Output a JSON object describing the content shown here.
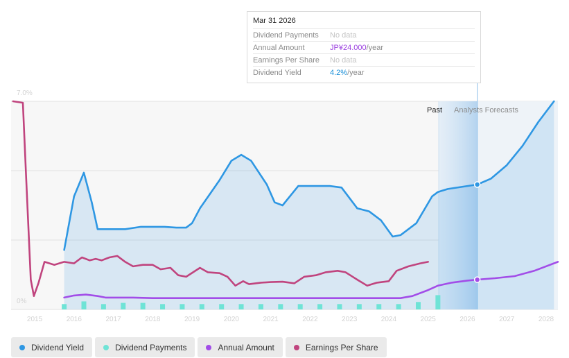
{
  "chart_data": {
    "type": "area",
    "title": "",
    "y_axis": {
      "min_label": "0%",
      "max_label": "7.0%",
      "min": 0,
      "max": 7.0
    },
    "x_range": [
      2014.4,
      2028.3
    ],
    "x_ticks": [
      "2015",
      "2016",
      "2017",
      "2018",
      "2019",
      "2020",
      "2021",
      "2022",
      "2023",
      "2024",
      "2025",
      "2026",
      "2027",
      "2028"
    ],
    "past_label": "Past",
    "forecast_label": "Analysts Forecasts",
    "forecast_start": 2025.27,
    "forecast_highlight_end": 2026.25,
    "tooltip": {
      "date": "Mar 31 2026",
      "rows": [
        {
          "label": "Dividend Payments",
          "value": "No data",
          "unit": "",
          "color": ""
        },
        {
          "label": "Annual Amount",
          "value": "JP¥24.000",
          "unit": "/year",
          "color": "#9b3fe0"
        },
        {
          "label": "Earnings Per Share",
          "value": "No data",
          "unit": "",
          "color": ""
        },
        {
          "label": "Dividend Yield",
          "value": "4.2%",
          "unit": "/year",
          "color": "#1a8fd8"
        }
      ]
    },
    "series": [
      {
        "name": "Dividend Yield",
        "color": "#2e97e3",
        "kind": "area",
        "points": [
          [
            2015.75,
            2.0
          ],
          [
            2016.0,
            3.8
          ],
          [
            2016.25,
            4.6
          ],
          [
            2016.45,
            3.6
          ],
          [
            2016.6,
            2.7
          ],
          [
            2017.0,
            2.7
          ],
          [
            2017.3,
            2.7
          ],
          [
            2017.7,
            2.78
          ],
          [
            2018.3,
            2.78
          ],
          [
            2018.6,
            2.75
          ],
          [
            2018.85,
            2.75
          ],
          [
            2019.0,
            2.9
          ],
          [
            2019.2,
            3.4
          ],
          [
            2019.7,
            4.35
          ],
          [
            2020.0,
            5.0
          ],
          [
            2020.25,
            5.2
          ],
          [
            2020.5,
            5.0
          ],
          [
            2020.9,
            4.2
          ],
          [
            2021.1,
            3.6
          ],
          [
            2021.3,
            3.5
          ],
          [
            2021.7,
            4.15
          ],
          [
            2022.0,
            4.15
          ],
          [
            2022.5,
            4.15
          ],
          [
            2022.8,
            4.1
          ],
          [
            2023.2,
            3.4
          ],
          [
            2023.5,
            3.3
          ],
          [
            2023.8,
            3.0
          ],
          [
            2024.1,
            2.45
          ],
          [
            2024.3,
            2.5
          ],
          [
            2024.7,
            2.9
          ],
          [
            2025.1,
            3.8
          ],
          [
            2025.25,
            3.95
          ],
          [
            2025.5,
            4.05
          ],
          [
            2026.0,
            4.15
          ],
          [
            2026.25,
            4.2
          ],
          [
            2026.6,
            4.4
          ],
          [
            2027.0,
            4.85
          ],
          [
            2027.4,
            5.5
          ],
          [
            2027.8,
            6.3
          ],
          [
            2028.2,
            7.0
          ]
        ]
      },
      {
        "name": "Annual Amount",
        "color": "#a24de8",
        "kind": "line",
        "points": [
          [
            2015.75,
            0.4
          ],
          [
            2016.0,
            0.47
          ],
          [
            2016.3,
            0.5
          ],
          [
            2016.6,
            0.45
          ],
          [
            2016.8,
            0.4
          ],
          [
            2017.5,
            0.4
          ],
          [
            2018.0,
            0.38
          ],
          [
            2024.3,
            0.38
          ],
          [
            2024.6,
            0.45
          ],
          [
            2025.0,
            0.65
          ],
          [
            2025.25,
            0.8
          ],
          [
            2025.6,
            0.9
          ],
          [
            2026.0,
            0.97
          ],
          [
            2026.25,
            1.0
          ],
          [
            2026.7,
            1.05
          ],
          [
            2027.2,
            1.12
          ],
          [
            2027.7,
            1.3
          ],
          [
            2028.3,
            1.6
          ]
        ]
      },
      {
        "name": "Earnings Per Share",
        "color": "#c0447e",
        "kind": "line",
        "points": [
          [
            2014.45,
            7.0
          ],
          [
            2014.7,
            6.95
          ],
          [
            2014.78,
            4.5
          ],
          [
            2014.9,
            1.0
          ],
          [
            2014.98,
            0.45
          ],
          [
            2015.1,
            0.9
          ],
          [
            2015.25,
            1.6
          ],
          [
            2015.5,
            1.5
          ],
          [
            2015.75,
            1.6
          ],
          [
            2016.0,
            1.55
          ],
          [
            2016.2,
            1.75
          ],
          [
            2016.4,
            1.65
          ],
          [
            2016.55,
            1.7
          ],
          [
            2016.7,
            1.65
          ],
          [
            2016.9,
            1.75
          ],
          [
            2017.1,
            1.8
          ],
          [
            2017.3,
            1.6
          ],
          [
            2017.5,
            1.45
          ],
          [
            2017.75,
            1.5
          ],
          [
            2018.0,
            1.5
          ],
          [
            2018.2,
            1.35
          ],
          [
            2018.45,
            1.4
          ],
          [
            2018.65,
            1.15
          ],
          [
            2018.85,
            1.1
          ],
          [
            2019.2,
            1.4
          ],
          [
            2019.4,
            1.25
          ],
          [
            2019.7,
            1.22
          ],
          [
            2019.9,
            1.1
          ],
          [
            2020.1,
            0.8
          ],
          [
            2020.3,
            0.95
          ],
          [
            2020.45,
            0.85
          ],
          [
            2020.75,
            0.9
          ],
          [
            2021.0,
            0.92
          ],
          [
            2021.3,
            0.93
          ],
          [
            2021.6,
            0.88
          ],
          [
            2021.85,
            1.1
          ],
          [
            2022.15,
            1.15
          ],
          [
            2022.4,
            1.25
          ],
          [
            2022.7,
            1.3
          ],
          [
            2022.9,
            1.25
          ],
          [
            2023.2,
            1.0
          ],
          [
            2023.45,
            0.8
          ],
          [
            2023.7,
            0.9
          ],
          [
            2024.0,
            0.95
          ],
          [
            2024.2,
            1.3
          ],
          [
            2024.5,
            1.45
          ],
          [
            2024.8,
            1.55
          ],
          [
            2025.0,
            1.6
          ]
        ]
      },
      {
        "name": "Dividend Payments",
        "color": "#6fe3d6",
        "kind": "bar",
        "points": [
          [
            2015.75,
            0.18
          ],
          [
            2016.25,
            0.27
          ],
          [
            2016.75,
            0.18
          ],
          [
            2017.25,
            0.22
          ],
          [
            2017.75,
            0.22
          ],
          [
            2018.25,
            0.18
          ],
          [
            2018.75,
            0.18
          ],
          [
            2019.25,
            0.18
          ],
          [
            2019.75,
            0.18
          ],
          [
            2020.25,
            0.18
          ],
          [
            2020.75,
            0.18
          ],
          [
            2021.25,
            0.18
          ],
          [
            2021.75,
            0.18
          ],
          [
            2022.25,
            0.18
          ],
          [
            2022.75,
            0.18
          ],
          [
            2023.25,
            0.18
          ],
          [
            2023.75,
            0.18
          ],
          [
            2024.25,
            0.18
          ],
          [
            2024.75,
            0.25
          ],
          [
            2025.25,
            0.48
          ]
        ]
      }
    ],
    "highlight_points": [
      {
        "series": "Dividend Yield",
        "x": 2026.25,
        "y": 4.2
      },
      {
        "series": "Annual Amount",
        "x": 2026.25,
        "y": 1.0
      }
    ]
  },
  "legend": [
    {
      "label": "Dividend Yield",
      "color": "#2e97e3"
    },
    {
      "label": "Dividend Payments",
      "color": "#6fe3d6"
    },
    {
      "label": "Annual Amount",
      "color": "#a24de8"
    },
    {
      "label": "Earnings Per Share",
      "color": "#c0447e"
    }
  ]
}
